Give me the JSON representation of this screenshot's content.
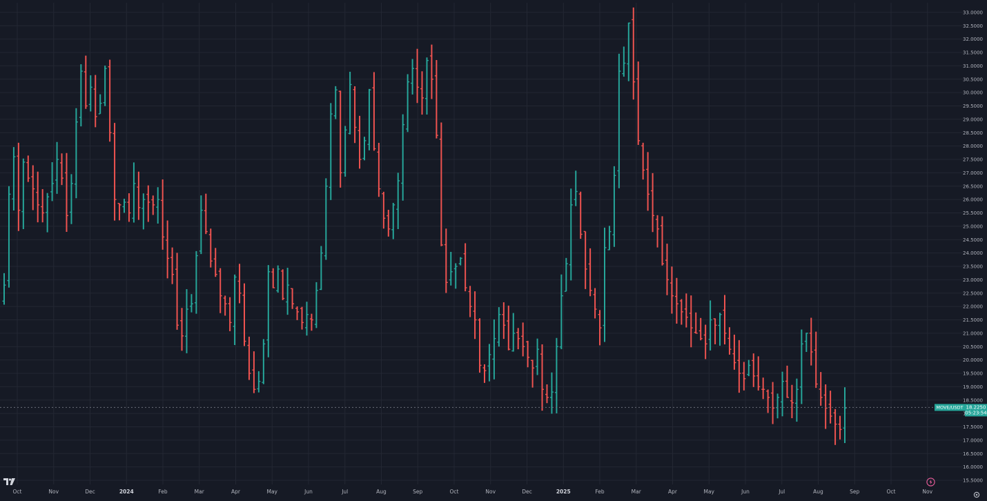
{
  "chart_data": {
    "type": "ohlc",
    "symbol_label": "MOVE/USDT",
    "last_price_label": "18.2250",
    "countdown_label": "05:23:54",
    "ylim": [
      15.4,
      33.2
    ],
    "y_ticks": [
      "15.5000",
      "16.0000",
      "16.5000",
      "17.0000",
      "17.5000",
      "18.0000",
      "18.5000",
      "19.0000",
      "19.5000",
      "20.0000",
      "20.5000",
      "21.0000",
      "21.5000",
      "22.0000",
      "22.5000",
      "23.0000",
      "23.5000",
      "24.0000",
      "24.5000",
      "25.0000",
      "25.5000",
      "26.0000",
      "26.5000",
      "27.0000",
      "27.5000",
      "28.0000",
      "28.5000",
      "29.0000",
      "29.5000",
      "30.0000",
      "30.5000",
      "31.0000",
      "31.5000",
      "32.0000",
      "32.5000",
      "33.0000"
    ],
    "x_ticks": [
      {
        "label": "Oct",
        "year": false
      },
      {
        "label": "Nov",
        "year": false
      },
      {
        "label": "Dec",
        "year": false
      },
      {
        "label": "2024",
        "year": true
      },
      {
        "label": "Feb",
        "year": false
      },
      {
        "label": "Mar",
        "year": false
      },
      {
        "label": "Apr",
        "year": false
      },
      {
        "label": "May",
        "year": false
      },
      {
        "label": "Jun",
        "year": false
      },
      {
        "label": "Jul",
        "year": false
      },
      {
        "label": "Aug",
        "year": false
      },
      {
        "label": "Sep",
        "year": false
      },
      {
        "label": "Oct",
        "year": false
      },
      {
        "label": "Nov",
        "year": false
      },
      {
        "label": "Dec",
        "year": false
      },
      {
        "label": "2025",
        "year": true
      },
      {
        "label": "Feb",
        "year": false
      },
      {
        "label": "Mar",
        "year": false
      },
      {
        "label": "Apr",
        "year": false
      },
      {
        "label": "May",
        "year": false
      },
      {
        "label": "Jun",
        "year": false
      },
      {
        "label": "Jul",
        "year": false
      },
      {
        "label": "Aug",
        "year": false
      },
      {
        "label": "Sep",
        "year": false
      },
      {
        "label": "Oct",
        "year": false
      },
      {
        "label": "Nov",
        "year": false
      }
    ],
    "grid": true,
    "colors": {
      "up": "#26a69a",
      "down": "#ef5350",
      "background": "#161a25",
      "grid": "#232733",
      "text": "#b2b5be",
      "last_price_bg": "#26a69a"
    },
    "bar_spacing_days": 2,
    "close_series": [
      22.8,
      26.2,
      27.6,
      25.6,
      27.4,
      26.8,
      26.4,
      25.8,
      25.5,
      26.1,
      26.6,
      27.5,
      26.8,
      25.4,
      26.6,
      28.9,
      30.8,
      29.5,
      30.2,
      29.1,
      29.6,
      30.9,
      28.5,
      26.0,
      25.8,
      25.9,
      25.5,
      26.6,
      25.7,
      26.0,
      25.9,
      25.8,
      26.0,
      24.6,
      23.8,
      23.2,
      21.3,
      20.9,
      21.9,
      22.1,
      23.9,
      25.6,
      24.8,
      23.7,
      23.2,
      22.4,
      22.1,
      21.4,
      23.1,
      22.5,
      20.7,
      19.5,
      18.9,
      19.2,
      20.6,
      23.3,
      22.7,
      23.4,
      22.3,
      22.8,
      22.1,
      21.8,
      21.4,
      21.7,
      21.5,
      22.6,
      24.0,
      26.5,
      29.2,
      30.1,
      27.0,
      28.6,
      30.3,
      28.7,
      27.5,
      28.2,
      30.1,
      27.9,
      26.4,
      25.3,
      24.9,
      25.8,
      26.7,
      28.8,
      30.4,
      30.9,
      30.2,
      29.8,
      31.2,
      30.5,
      28.4,
      24.3,
      22.9,
      23.3,
      23.5,
      23.8,
      22.7,
      22.0,
      21.5,
      19.8,
      19.6,
      20.2,
      20.8,
      21.7,
      21.3,
      20.4,
      21.0,
      20.8,
      20.5,
      20.1,
      19.7,
      20.4,
      18.9,
      18.6,
      18.8,
      20.5,
      22.4,
      23.6,
      25.8,
      26.3,
      24.7,
      23.4,
      22.6,
      21.9,
      21.2,
      24.2,
      24.8,
      26.9,
      30.8,
      31.1,
      32.6,
      30.4,
      28.2,
      27.1,
      26.2,
      25.4,
      24.9,
      23.6,
      23.0,
      22.4,
      22.1,
      21.8,
      21.6,
      21.2,
      21.0,
      20.8,
      20.6,
      21.5,
      21.3,
      21.7,
      21.0,
      20.4,
      19.9,
      19.5,
      19.3,
      19.8,
      19.4,
      19.0,
      18.9,
      18.6,
      18.2,
      18.6,
      19.2,
      18.6,
      18.4,
      18.9,
      20.6,
      21.0,
      20.3,
      19.1,
      18.6,
      18.2,
      17.9,
      17.6,
      17.4,
      18.2
    ]
  },
  "branding": {
    "logo_label": "TV"
  }
}
